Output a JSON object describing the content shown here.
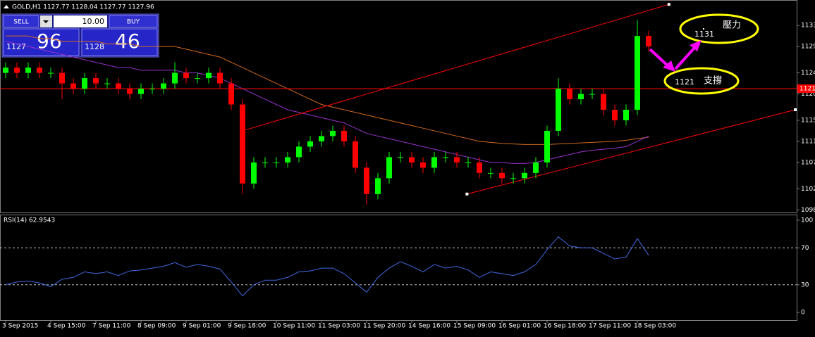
{
  "header": "GOLD,H1  1127.77 1128.04 1127.77 1127.96",
  "trade_panel": {
    "sell": "SELL",
    "lots": "10.00",
    "buy": "BUY",
    "bid_big": "1127",
    "bid_small": "96",
    "ask_big": "1128",
    "ask_small": "46"
  },
  "chart_data": [
    {
      "type": "candlestick",
      "categories": [
        "3 Sep 2015",
        null,
        null,
        null,
        "4 Sep 15:00",
        null,
        null,
        null,
        "7 Sep 11:00",
        null,
        null,
        null,
        "8 Sep 09:00",
        null,
        null,
        null,
        "9 Sep 01:00",
        null,
        null,
        null,
        "9 Sep 18:00",
        null,
        null,
        null,
        "10 Sep 11:00",
        null,
        null,
        null,
        "11 Sep 03:00",
        null,
        null,
        null,
        "11 Sep 20:00",
        null,
        null,
        null,
        "14 Sep 16:00",
        null,
        null,
        null,
        "15 Sep 09:00",
        null,
        null,
        null,
        "16 Sep 01:00",
        null,
        null,
        null,
        "16 Sep 18:00",
        null,
        null,
        null,
        "17 Sep 11:00",
        null,
        null,
        null,
        "18 Sep 03:00",
        null
      ],
      "open": [
        1124,
        1125,
        1124,
        1125,
        1124,
        1124,
        1122,
        1121,
        1123,
        1122,
        1122,
        1121,
        1120,
        1121,
        1121,
        1122,
        1124,
        1123,
        1123,
        1124,
        1122,
        1118,
        1103,
        1107,
        1107,
        1107,
        1108,
        1110,
        1111,
        1112,
        1113,
        1111,
        1106,
        1101,
        1104,
        1108,
        1108,
        1107,
        1106,
        1108,
        1108,
        1107,
        1107,
        1105,
        1105,
        1104,
        1104,
        1105,
        1107,
        1113,
        1121,
        1119,
        1120,
        1120,
        1117,
        1115,
        1117,
        1131
      ],
      "high": [
        1126,
        1126,
        1126,
        1126,
        1125,
        1125,
        1123,
        1124,
        1124,
        1123,
        1123,
        1122,
        1122,
        1122,
        1123,
        1126,
        1125,
        1124,
        1125,
        1125,
        1123,
        1119,
        1108,
        1108,
        1108,
        1109,
        1111,
        1112,
        1113,
        1114,
        1114,
        1112,
        1107,
        1105,
        1109,
        1109,
        1109,
        1108,
        1109,
        1109,
        1109,
        1108,
        1108,
        1106,
        1106,
        1105,
        1106,
        1108,
        1114,
        1123,
        1122,
        1121,
        1121,
        1121,
        1118,
        1118,
        1134,
        1132
      ],
      "low": [
        1123,
        1123,
        1123,
        1123,
        1123,
        1119,
        1120,
        1120,
        1121,
        1121,
        1120,
        1119,
        1119,
        1120,
        1120,
        1121,
        1122,
        1122,
        1122,
        1121,
        1117,
        1101,
        1102,
        1106,
        1106,
        1106,
        1107,
        1109,
        1110,
        1111,
        1110,
        1105,
        1099,
        1100,
        1103,
        1107,
        1106,
        1105,
        1105,
        1107,
        1106,
        1106,
        1104,
        1104,
        1103,
        1103,
        1103,
        1104,
        1106,
        1112,
        1118,
        1118,
        1119,
        1116,
        1114,
        1114,
        1116,
        1128
      ],
      "close": [
        1125,
        1124,
        1125,
        1124,
        1124,
        1122,
        1121,
        1123,
        1122,
        1122,
        1121,
        1120,
        1121,
        1121,
        1122,
        1124,
        1123,
        1123,
        1124,
        1122,
        1118,
        1103,
        1107,
        1107,
        1107,
        1108,
        1110,
        1111,
        1112,
        1113,
        1111,
        1106,
        1101,
        1104,
        1108,
        1108,
        1107,
        1106,
        1108,
        1108,
        1107,
        1107,
        1105,
        1105,
        1104,
        1104,
        1105,
        1107,
        1113,
        1121,
        1119,
        1120,
        1120,
        1117,
        1115,
        1117,
        1131,
        1129
      ],
      "up_color": "#00ff00",
      "down_color": "#ff0000",
      "ylim": [
        1097.5,
        1137.7
      ],
      "yticks": [
        1133,
        1129,
        1124,
        1120,
        1115,
        1111,
        1107,
        1102,
        1098
      ],
      "moving_averages": [
        {
          "color": "#d2691e",
          "values": [
            1131,
            1131,
            1131,
            1130.5,
            1130.5,
            1130,
            1130,
            1130,
            1130,
            1129.5,
            1129.5,
            1129.5,
            1129,
            1129,
            1129,
            1129,
            1128.5,
            1128,
            1127.5,
            1127,
            1126,
            1125,
            1124,
            1123,
            1122,
            1121,
            1120,
            1119,
            1118,
            1117.5,
            1117,
            1116.5,
            1116,
            1115.5,
            1115,
            1114.5,
            1114,
            1113.5,
            1113,
            1112.5,
            1112,
            1111.5,
            1111,
            1110.8,
            1110.6,
            1110.5,
            1110.4,
            1110.4,
            1110.4,
            1110.5,
            1110.6,
            1110.7,
            1110.8,
            1110.9,
            1111,
            1111.2,
            1111.5,
            1111.8
          ]
        },
        {
          "color": "#9932cc",
          "values": [
            1130,
            1129.5,
            1129,
            1128.5,
            1128,
            1127.5,
            1127,
            1126.5,
            1126,
            1125.5,
            1125,
            1125,
            1124.5,
            1124.5,
            1124.5,
            1124.5,
            1124,
            1124,
            1123.5,
            1123,
            1122,
            1121,
            1120,
            1119,
            1118,
            1117,
            1116.5,
            1116,
            1115.5,
            1115,
            1114.5,
            1113.5,
            1112.5,
            1112,
            1111.5,
            1111,
            1110.5,
            1110,
            1109.5,
            1109,
            1108.5,
            1108,
            1107.5,
            1107,
            1107,
            1106.8,
            1106.8,
            1107,
            1107.5,
            1108,
            1108.5,
            1109,
            1109.3,
            1109.5,
            1109.7,
            1110,
            1111,
            1112
          ]
        }
      ],
      "hlines": [
        {
          "value": 1121,
          "color": "#ff0000"
        }
      ],
      "trendlines": [
        {
          "x": [
            21,
            58.8
          ],
          "y": [
            1113,
            1137
          ],
          "color": "#ff0000"
        },
        {
          "x": [
            40.9,
            70
          ],
          "y": [
            1101,
            1117
          ],
          "color": "#ff0000"
        }
      ],
      "annotations": [
        {
          "price": "1131",
          "text": "壓力"
        },
        {
          "price": "1121",
          "text": "支撐"
        }
      ]
    },
    {
      "type": "line",
      "title": "RSI(14) 62.9543",
      "series": [
        {
          "color": "#4169e1",
          "values": [
            30,
            33,
            34,
            32,
            28,
            36,
            38,
            44,
            42,
            44,
            40,
            45,
            46,
            48,
            50,
            54,
            49,
            52,
            50,
            47,
            33,
            18,
            30,
            35,
            35,
            38,
            44,
            45,
            48,
            48,
            42,
            32,
            22,
            38,
            48,
            55,
            50,
            44,
            52,
            48,
            50,
            46,
            38,
            44,
            42,
            40,
            44,
            52,
            68,
            82,
            72,
            70,
            70,
            64,
            58,
            60,
            80,
            62
          ]
        }
      ],
      "ylim": [
        -8.3,
        105.3
      ],
      "yticks": [
        100,
        70,
        30,
        0
      ],
      "levels": [
        70,
        30
      ]
    }
  ]
}
